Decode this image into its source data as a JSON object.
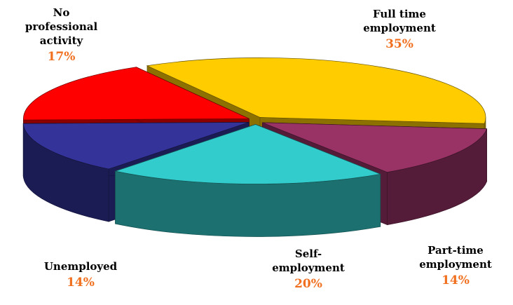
{
  "chart_data": {
    "type": "pie3d",
    "categories": [
      "Full time employment",
      "Part-time employment",
      "Self-employment",
      "Unemployed",
      "No professional activity"
    ],
    "values": [
      35,
      14,
      20,
      14,
      17
    ],
    "value_labels": [
      "35%",
      "14%",
      "20%",
      "14%",
      "17%"
    ],
    "colors": [
      "#ffcc00",
      "#993366",
      "#33cccc",
      "#333399",
      "#ff0000"
    ]
  }
}
